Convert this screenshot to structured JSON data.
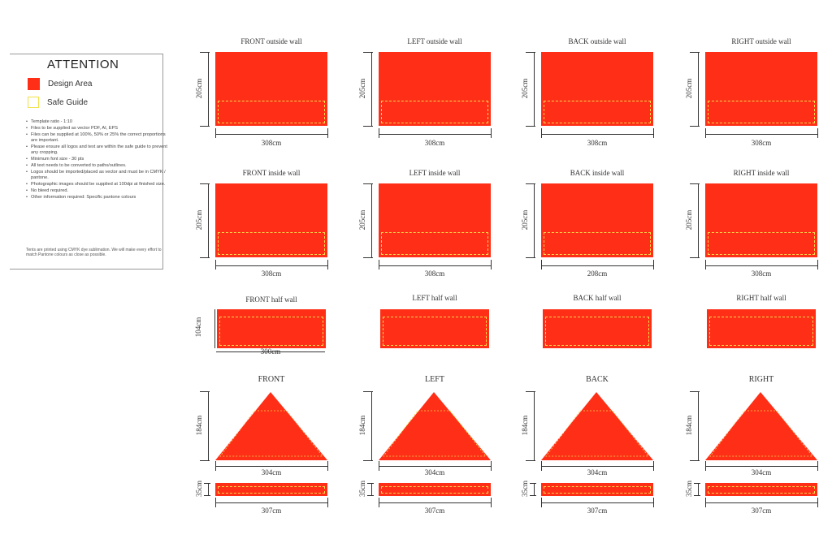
{
  "attention": {
    "title": "ATTENTION",
    "design_area": "Design Area",
    "safe_guide": "Safe Guide",
    "notes": [
      "Template ratio - 1:10",
      "Files to be supplied as vector PDF, AI, EPS",
      "Files can be supplied at 100%, 50% or 25% the correct proportions are important.",
      "Please ensure all logos and text are within the safe guide to prevent any cropping.",
      "Minimum font size - 30 pts",
      "All text needs to be converted to paths/outlines.",
      "Logos should be imported/placed as vector and must be in CMYK / pantone.",
      "Photographic images should be supplied at 100dpi at finished size.",
      "No bleed required.",
      "Other information required: Specific pantone colours"
    ],
    "footnote": "Tents are printed using CMYK dye sublimation. We will make every effort to match Pantone colours as close as possible."
  },
  "rows": {
    "outside": {
      "labels": [
        "FRONT outside wall",
        "LEFT outside wall",
        "BACK outside wall",
        "RIGHT outside wall"
      ],
      "height": [
        "205cm",
        "205cm",
        "205cm",
        "205cm"
      ],
      "width": [
        "308cm",
        "308cm",
        "308cm",
        "308cm"
      ]
    },
    "inside": {
      "labels": [
        "FRONT inside wall",
        "LEFT inside wall",
        "BACK inside wall",
        "RIGHT inside wall"
      ],
      "height": [
        "205cm",
        "205cm",
        "205cm",
        "205cm"
      ],
      "width": [
        "308cm",
        "308cm",
        "208cm",
        "308cm"
      ]
    },
    "half": {
      "labels": [
        "FRONT half wall",
        "LEFT half wall",
        "BACK half wall",
        "RIGHT half wall"
      ],
      "height": "104cm",
      "width": "300cm"
    },
    "roof": {
      "labels": [
        "FRONT",
        "LEFT",
        "BACK",
        "RIGHT"
      ],
      "height": [
        "184cm",
        "184cm",
        "184cm",
        "184cm"
      ],
      "width": [
        "304cm",
        "304cm",
        "304cm",
        "304cm"
      ]
    },
    "valance": {
      "height": [
        "35cm",
        "35cm",
        "35cm",
        "35cm"
      ],
      "width": [
        "307cm",
        "307cm",
        "307cm",
        "307cm"
      ]
    }
  },
  "colors": {
    "design_area": "#ff2e17",
    "safe_guide": "#f5d94a"
  }
}
